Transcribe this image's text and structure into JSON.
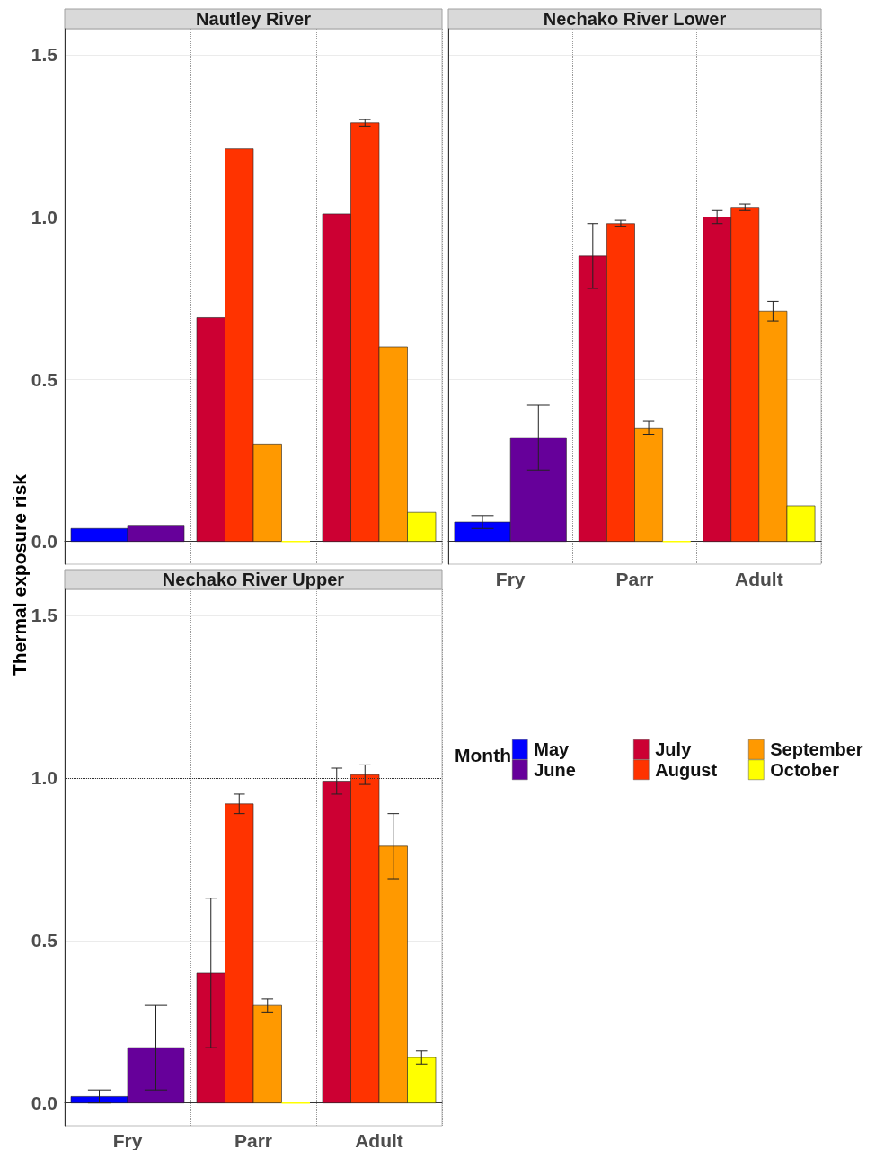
{
  "chart_data": [
    {
      "type": "bar",
      "title": "Nautley River",
      "ylabel": "Thermal exposure risk",
      "categories": [
        null,
        null,
        null
      ],
      "series": [
        {
          "color": "#0000ff",
          "values": [
            0.04,
            null,
            null
          ]
        },
        {
          "color": "#66009a",
          "values": [
            0.05,
            null,
            null
          ]
        },
        {
          "color": "#cc0033",
          "values": [
            null,
            0.69,
            1.01
          ]
        },
        {
          "color": "#ff3300",
          "values": [
            null,
            1.21,
            1.29
          ],
          "errors": [
            null,
            null,
            0.01
          ]
        },
        {
          "color": "#ff9900",
          "values": [
            null,
            0.3,
            0.6
          ]
        },
        {
          "color": "#ffff00",
          "values": [
            null,
            0,
            0.09
          ]
        }
      ],
      "ylim": [
        -0.07,
        1.58
      ],
      "yticks": [
        {
          "value": 0,
          "label": "0.0"
        },
        {
          "value": 0.5,
          "label": "0.5"
        },
        {
          "value": 1,
          "label": "1.0"
        },
        {
          "value": 1.5,
          "label": "1.5"
        }
      ],
      "grid": true,
      "tick_labels": "y",
      "ref_lines": [
        {
          "axis": "y",
          "value": 1,
          "line_style": "dotted"
        }
      ]
    },
    {
      "type": "bar",
      "title": "Nechako River Lower",
      "categories": [
        "Fry",
        "Parr",
        "Adult"
      ],
      "series": [
        {
          "color": "#0000ff",
          "values": [
            0.06,
            null,
            null
          ],
          "errors": [
            0.02,
            null,
            null
          ]
        },
        {
          "color": "#66009a",
          "values": [
            0.32,
            null,
            null
          ],
          "errors": [
            0.1,
            null,
            null
          ]
        },
        {
          "color": "#cc0033",
          "values": [
            null,
            0.88,
            1.0
          ],
          "errors": [
            null,
            0.1,
            0.02
          ]
        },
        {
          "color": "#ff3300",
          "values": [
            null,
            0.98,
            1.03
          ],
          "errors": [
            null,
            0.01,
            0.01
          ]
        },
        {
          "color": "#ff9900",
          "values": [
            null,
            0.35,
            0.71
          ],
          "errors": [
            null,
            0.02,
            0.03
          ]
        },
        {
          "color": "#ffff00",
          "values": [
            null,
            0,
            0.11
          ]
        }
      ],
      "ylim": [
        -0.07,
        1.58
      ],
      "yticks": [
        0,
        0.5,
        1,
        1.5
      ],
      "grid": true,
      "tick_labels": "x",
      "ref_lines": [
        {
          "axis": "y",
          "value": 1,
          "line_style": "dotted"
        }
      ]
    },
    {
      "type": "bar",
      "title": "Nechako River Upper",
      "categories": [
        "Fry",
        "Parr",
        "Adult"
      ],
      "series": [
        {
          "name": "May",
          "color": "#0000ff",
          "values": [
            0.02,
            null,
            null
          ],
          "errors": [
            0.02,
            null,
            null
          ]
        },
        {
          "name": "June",
          "color": "#66009a",
          "values": [
            0.17,
            null,
            null
          ],
          "errors": [
            [
              0.04,
              0.3
            ],
            null,
            null
          ]
        },
        {
          "name": "July",
          "color": "#cc0033",
          "values": [
            null,
            0.4,
            0.99
          ],
          "errors": [
            null,
            [
              0.17,
              0.63
            ],
            0.04
          ]
        },
        {
          "name": "August",
          "color": "#ff3300",
          "values": [
            null,
            0.92,
            1.01
          ],
          "errors": [
            null,
            0.03,
            0.03
          ]
        },
        {
          "name": "September",
          "color": "#ff9900",
          "values": [
            null,
            0.3,
            0.79
          ],
          "errors": [
            null,
            0.02,
            0.1
          ]
        },
        {
          "name": "October",
          "color": "#ffff00",
          "values": [
            null,
            0,
            0.14
          ],
          "errors": [
            null,
            null,
            0.02
          ]
        }
      ],
      "ylim": [
        -0.07,
        1.58
      ],
      "yticks": [
        {
          "value": 0,
          "label": "0.0"
        },
        {
          "value": 0.5,
          "label": "0.5"
        },
        {
          "value": 1,
          "label": "1.0"
        },
        {
          "value": 1.5,
          "label": "1.5"
        }
      ],
      "grid": true,
      "legend": "right",
      "legend_title": "Month",
      "ref_lines": [
        {
          "axis": "y",
          "value": 1,
          "line_style": "dotted"
        }
      ]
    }
  ]
}
